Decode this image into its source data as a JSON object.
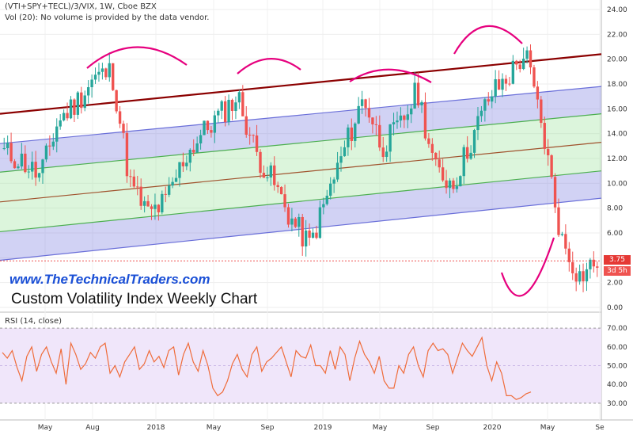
{
  "header": {
    "symbol": "(VTI+SPY+TECL)/3/VIX, 1W, Cboe BZX",
    "volume_note": "Vol (20): No volume is provided by the data vendor."
  },
  "watermark": {
    "url": "www.TheTechnicalTraders.com",
    "caption": "Custom Volatility Index Weekly Chart"
  },
  "price_tag": {
    "value": "3.75",
    "countdown": "3d 5h",
    "color": "#e53935"
  },
  "colors": {
    "up": "#26a69a",
    "down": "#ef5350",
    "channel_top": "#8b0000",
    "outer_band": "#6a6fd9",
    "inner_band": "#4caf50",
    "midline": "#a0522d",
    "annotation": "#e6007e",
    "rsi_line": "#ef6c3a",
    "rsi_fill": "#f0e6fa"
  },
  "chart_data": [
    {
      "type": "candlestick",
      "title": "",
      "y_axis_ticks": [
        "0.00",
        "2.00",
        "4.00",
        "6.00",
        "8.00",
        "10.00",
        "12.00",
        "14.00",
        "16.00",
        "18.00",
        "20.00",
        "22.00",
        "24.00"
      ],
      "ylim": [
        0,
        24
      ],
      "x_axis_ticks": [
        "May",
        "Aug",
        "2018",
        "May",
        "Sep",
        "2019",
        "May",
        "Sep",
        "2020",
        "May",
        "Se"
      ],
      "grid": true,
      "close_path": [
        [
          "2017-04",
          12.5
        ],
        [
          "2017-06",
          11.8
        ],
        [
          "2017-07",
          10.5
        ],
        [
          "2017-08",
          15.0
        ],
        [
          "2017-10",
          16.5
        ],
        [
          "2017-12",
          18.5
        ],
        [
          "2018-01",
          19.0
        ],
        [
          "2018-02",
          10.0
        ],
        [
          "2018-03",
          7.5
        ],
        [
          "2018-04",
          8.5
        ],
        [
          "2018-05",
          12.0
        ],
        [
          "2018-06",
          14.0
        ],
        [
          "2018-07",
          15.5
        ],
        [
          "2018-09",
          17.0
        ],
        [
          "2018-10",
          12.5
        ],
        [
          "2018-11",
          10.0
        ],
        [
          "2018-12",
          7.0
        ],
        [
          "2019-01",
          5.0
        ],
        [
          "2019-02",
          9.0
        ],
        [
          "2019-03",
          13.0
        ],
        [
          "2019-04",
          17.0
        ],
        [
          "2019-05",
          13.0
        ],
        [
          "2019-06",
          14.5
        ],
        [
          "2019-07",
          17.5
        ],
        [
          "2019-08",
          11.0
        ],
        [
          "2019-09",
          10.0
        ],
        [
          "2019-10",
          13.5
        ],
        [
          "2019-11",
          17.0
        ],
        [
          "2019-12",
          18.5
        ],
        [
          "2020-01",
          20.5
        ],
        [
          "2020-02",
          14.0
        ],
        [
          "2020-03",
          5.5
        ],
        [
          "2020-04",
          2.5
        ],
        [
          "2020-05",
          3.75
        ]
      ],
      "regression_channel": {
        "top_line": [
          15.6,
          20.4
        ],
        "outer_upper": [
          13.2,
          17.8
        ],
        "inner_upper": [
          10.9,
          15.6
        ],
        "midline": [
          8.5,
          13.3
        ],
        "inner_lower": [
          6.1,
          11.0
        ],
        "outer_lower": [
          3.8,
          8.8
        ]
      },
      "last_price": 3.75
    },
    {
      "type": "line",
      "title": "RSI (14, close)",
      "y_axis_ticks": [
        "30.00",
        "40.00",
        "50.00",
        "60.00",
        "70.00"
      ],
      "ylim": [
        27,
        73
      ],
      "band": [
        30,
        70
      ],
      "values": [
        57,
        54,
        58,
        49,
        42,
        55,
        60,
        47,
        56,
        60,
        52,
        46,
        59,
        40,
        62,
        56,
        48,
        51,
        57,
        54,
        60,
        62,
        46,
        50,
        44,
        52,
        56,
        60,
        48,
        51,
        58,
        52,
        55,
        49,
        58,
        60,
        45,
        56,
        62,
        52,
        47,
        58,
        50,
        38,
        34,
        36,
        42,
        51,
        56,
        48,
        44,
        56,
        60,
        47,
        52,
        54,
        57,
        60,
        52,
        44,
        58,
        55,
        54,
        61,
        50,
        50,
        46,
        58,
        48,
        60,
        56,
        42,
        54,
        63,
        56,
        52,
        46,
        55,
        42,
        38,
        38,
        50,
        46,
        56,
        60,
        50,
        44,
        58,
        62,
        58,
        59,
        56,
        46,
        54,
        62,
        58,
        55,
        60,
        65,
        50,
        42,
        52,
        46,
        34,
        34,
        32,
        33,
        35,
        36
      ]
    }
  ]
}
